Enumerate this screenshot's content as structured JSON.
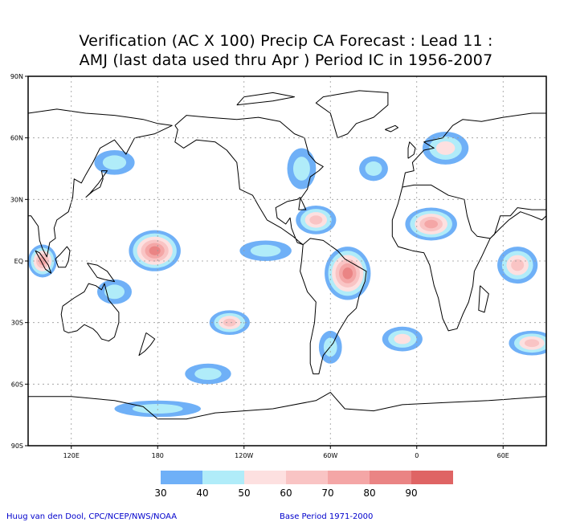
{
  "title": {
    "line1": "Verification (AC X 100) Precip CA Forecast : Lead 11 :",
    "line2": "AMJ (last data used thru Apr ) Period IC in 1956-2007"
  },
  "map": {
    "lat_labels": [
      "90N",
      "60N",
      "30N",
      "EQ",
      "30S",
      "60S",
      "90S"
    ],
    "lon_labels": [
      "120E",
      "180",
      "120W",
      "60W",
      "0",
      "60E"
    ],
    "lon_range": [
      90,
      450
    ],
    "lat_range": [
      -90,
      90
    ],
    "colors": {
      "c30": "#6fb0f7",
      "c40": "#b0ecf9",
      "c50": "#fde0e0",
      "c60": "#f9c4c4",
      "c70": "#f4a6a6",
      "c80": "#ea8484",
      "c90": "#df6464",
      "coast": "#000000",
      "grid": "#999999"
    },
    "regions": [
      {
        "name": "western pacific maximum",
        "lon": 178,
        "lat": 5,
        "rx": 18,
        "ry": 10,
        "level": 80
      },
      {
        "name": "amazon maximum",
        "lon": 312,
        "lat": -6,
        "rx": 16,
        "ry": 13,
        "level": 80
      },
      {
        "name": "north africa maximum",
        "lon": 370,
        "lat": 18,
        "rx": 18,
        "ry": 8,
        "level": 70
      },
      {
        "name": "caribbean",
        "lon": 290,
        "lat": 20,
        "rx": 14,
        "ry": 7,
        "level": 60
      },
      {
        "name": "south pacific",
        "lon": 230,
        "lat": -30,
        "rx": 14,
        "ry": 6,
        "level": 60
      },
      {
        "name": "south atlantic",
        "lon": 350,
        "lat": -38,
        "rx": 14,
        "ry": 6,
        "level": 50
      },
      {
        "name": "indian ocean",
        "lon": 430,
        "lat": -2,
        "rx": 14,
        "ry": 9,
        "level": 60
      },
      {
        "name": "indonesia",
        "lon": 100,
        "lat": 0,
        "rx": 10,
        "ry": 8,
        "level": 70
      },
      {
        "name": "southern ocean east",
        "lon": 440,
        "lat": -40,
        "rx": 16,
        "ry": 6,
        "level": 60
      },
      {
        "name": "southern ocean pacific",
        "lon": 215,
        "lat": -55,
        "rx": 16,
        "ry": 5,
        "level": 40
      },
      {
        "name": "northeast asia",
        "lon": 150,
        "lat": 48,
        "rx": 14,
        "ry": 6,
        "level": 40
      },
      {
        "name": "north atlantic",
        "lon": 330,
        "lat": 45,
        "rx": 10,
        "ry": 6,
        "level": 40
      },
      {
        "name": "north america east",
        "lon": 280,
        "lat": 45,
        "rx": 10,
        "ry": 10,
        "level": 40
      },
      {
        "name": "siberia",
        "lon": 380,
        "lat": 55,
        "rx": 16,
        "ry": 8,
        "level": 50
      },
      {
        "name": "east pacific tropics",
        "lon": 255,
        "lat": 5,
        "rx": 18,
        "ry": 5,
        "level": 40
      },
      {
        "name": "west pacific south",
        "lon": 150,
        "lat": -15,
        "rx": 12,
        "ry": 6,
        "level": 40
      },
      {
        "name": "south america south",
        "lon": 300,
        "lat": -42,
        "rx": 8,
        "ry": 8,
        "level": 40
      },
      {
        "name": "antarctic coast",
        "lon": 180,
        "lat": -72,
        "rx": 30,
        "ry": 4,
        "level": 40
      }
    ]
  },
  "legend": {
    "labels": [
      "30",
      "40",
      "50",
      "60",
      "70",
      "80",
      "90"
    ],
    "color_keys": [
      "c30",
      "c40",
      "c50",
      "c60",
      "c70",
      "c80",
      "c90"
    ]
  },
  "footer": {
    "left": "Huug van den Dool, CPC/NCEP/NWS/NOAA",
    "right": "Base Period 1971-2000"
  }
}
